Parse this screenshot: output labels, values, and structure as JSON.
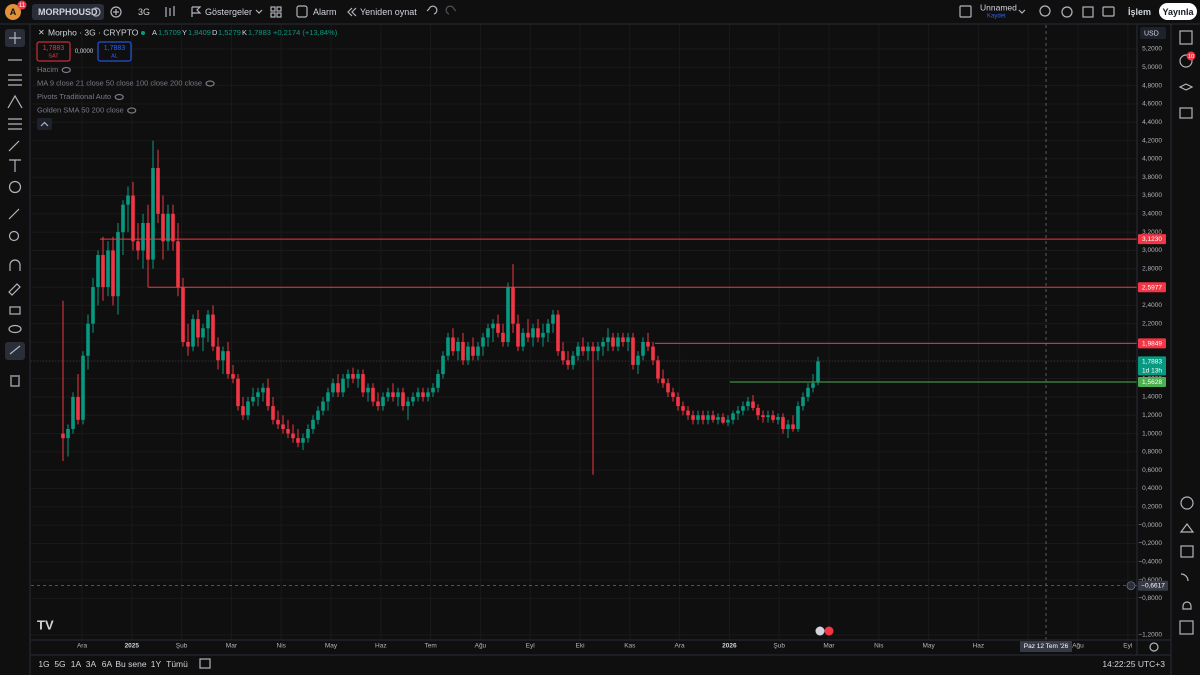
{
  "top_bar": {
    "notification_count": "11",
    "symbol": "MORPHOUSD",
    "interval": "3G",
    "indicators_button": "Göstergeler",
    "alarm_button": "Alarm",
    "replay_button": "Yeniden oynat",
    "layout_name": "Unnamed",
    "save_status": "Kaydet",
    "trade_button": "İşlem",
    "publish_button": "Yayınla"
  },
  "legend": {
    "title": "Morpho · 3G · CRYPTO",
    "open_label": "A",
    "open": "1,5709",
    "high_label": "Y",
    "high": "1,8409",
    "low_label": "D",
    "low": "1,5279",
    "close_label": "K",
    "close": "1,7883",
    "change": "+0,2174 (+13,84%)",
    "sell_price": "1,7883",
    "sell_label": "SAT",
    "spread": "0,0000",
    "buy_price": "1,7883",
    "buy_label": "AL"
  },
  "indicators": [
    "Hacim",
    "MA 9 close 21 close 50 close 100 close 200 close",
    "Pivots Traditional Auto",
    "Golden SMA 50 200 close"
  ],
  "currency": "USD",
  "right_badge": "10",
  "price_chart": {
    "type": "candlestick",
    "up_color": "#089981",
    "down_color": "#f23645",
    "ylim": [
      -1.2,
      5.2
    ],
    "grid": true,
    "yticks": [
      {
        "value": 5.2,
        "label": "5,2000"
      },
      {
        "value": 5.0,
        "label": "5,0000"
      },
      {
        "value": 4.8,
        "label": "4,8000"
      },
      {
        "value": 4.6,
        "label": "4,6000"
      },
      {
        "value": 4.4,
        "label": "4,4000"
      },
      {
        "value": 4.2,
        "label": "4,2000"
      },
      {
        "value": 4.0,
        "label": "4,0000"
      },
      {
        "value": 3.8,
        "label": "3,8000"
      },
      {
        "value": 3.6,
        "label": "3,6000"
      },
      {
        "value": 3.4,
        "label": "3,4000"
      },
      {
        "value": 3.2,
        "label": "3,2000"
      },
      {
        "value": 3.0,
        "label": "3,0000"
      },
      {
        "value": 2.8,
        "label": "2,8000"
      },
      {
        "value": 2.6,
        "label": "2,6000"
      },
      {
        "value": 2.4,
        "label": "2,4000"
      },
      {
        "value": 2.2,
        "label": "2,2000"
      },
      {
        "value": 2.0,
        "label": "2,0000"
      },
      {
        "value": 1.8,
        "label": "1,8000"
      },
      {
        "value": 1.6,
        "label": "1,6000"
      },
      {
        "value": 1.4,
        "label": "1,4000"
      },
      {
        "value": 1.2,
        "label": "1,2000"
      },
      {
        "value": 1.0,
        "label": "1,0000"
      },
      {
        "value": 0.8,
        "label": "0,8000"
      },
      {
        "value": 0.6,
        "label": "0,6000"
      },
      {
        "value": 0.4,
        "label": "0,4000"
      },
      {
        "value": 0.2,
        "label": "0,2000"
      },
      {
        "value": 0,
        "label": "−0,0000"
      },
      {
        "value": -0.2,
        "label": "−0,2000"
      },
      {
        "value": -0.4,
        "label": "−0,4000"
      },
      {
        "value": -0.6,
        "label": "−0,6000"
      },
      {
        "value": -0.8,
        "label": "−0,8000"
      },
      {
        "value": -1.2,
        "label": "−1,2000"
      }
    ],
    "time_labels": [
      "Ara",
      "2025",
      "Şub",
      "Mar",
      "Nis",
      "May",
      "Haz",
      "Tem",
      "Ağu",
      "Eyl",
      "Eki",
      "Kas",
      "Ara",
      "2026",
      "Şub",
      "Mar",
      "Nis",
      "May",
      "Haz",
      null,
      "Ağu",
      "Eyl"
    ],
    "year_labels": [
      "2025",
      "2026"
    ],
    "candles": [
      [
        1.0,
        2.45,
        0.7,
        0.95
      ],
      [
        0.95,
        1.1,
        0.75,
        1.05
      ],
      [
        1.05,
        1.45,
        1.0,
        1.4
      ],
      [
        1.4,
        1.65,
        1.1,
        1.15
      ],
      [
        1.15,
        1.9,
        1.1,
        1.85
      ],
      [
        1.85,
        2.3,
        1.7,
        2.2
      ],
      [
        2.2,
        2.7,
        2.1,
        2.6
      ],
      [
        2.6,
        3.0,
        2.4,
        2.95
      ],
      [
        2.95,
        3.15,
        2.45,
        2.6
      ],
      [
        2.6,
        3.1,
        2.5,
        3.0
      ],
      [
        3.0,
        3.15,
        2.4,
        2.5
      ],
      [
        2.5,
        3.3,
        2.3,
        3.2
      ],
      [
        3.2,
        3.55,
        2.95,
        3.5
      ],
      [
        3.5,
        3.7,
        3.2,
        3.6
      ],
      [
        3.6,
        3.75,
        3.0,
        3.1
      ],
      [
        3.1,
        3.3,
        2.9,
        3.0
      ],
      [
        3.0,
        3.4,
        2.8,
        3.3
      ],
      [
        3.3,
        3.5,
        2.6,
        2.9
      ],
      [
        2.9,
        4.2,
        2.8,
        3.9
      ],
      [
        3.9,
        4.1,
        3.3,
        3.4
      ],
      [
        3.4,
        3.6,
        2.9,
        3.1
      ],
      [
        3.1,
        3.5,
        3.0,
        3.4
      ],
      [
        3.4,
        3.5,
        3.0,
        3.1
      ],
      [
        3.1,
        3.3,
        2.5,
        2.6
      ],
      [
        2.6,
        2.7,
        1.95,
        2.0
      ],
      [
        2.0,
        2.2,
        1.85,
        1.95
      ],
      [
        1.95,
        2.3,
        1.9,
        2.25
      ],
      [
        2.25,
        2.35,
        1.95,
        2.05
      ],
      [
        2.05,
        2.2,
        1.9,
        2.15
      ],
      [
        2.15,
        2.35,
        2.0,
        2.3
      ],
      [
        2.3,
        2.4,
        1.9,
        1.95
      ],
      [
        1.95,
        2.05,
        1.7,
        1.8
      ],
      [
        1.8,
        1.95,
        1.65,
        1.9
      ],
      [
        1.9,
        2.0,
        1.6,
        1.65
      ],
      [
        1.65,
        1.75,
        1.55,
        1.6
      ],
      [
        1.6,
        1.65,
        1.25,
        1.3
      ],
      [
        1.3,
        1.4,
        1.15,
        1.2
      ],
      [
        1.2,
        1.4,
        1.15,
        1.35
      ],
      [
        1.35,
        1.5,
        1.3,
        1.4
      ],
      [
        1.4,
        1.5,
        1.3,
        1.45
      ],
      [
        1.45,
        1.55,
        1.35,
        1.5
      ],
      [
        1.5,
        1.6,
        1.25,
        1.3
      ],
      [
        1.3,
        1.4,
        1.1,
        1.15
      ],
      [
        1.15,
        1.25,
        1.05,
        1.1
      ],
      [
        1.1,
        1.2,
        1.0,
        1.05
      ],
      [
        1.05,
        1.15,
        0.95,
        1.0
      ],
      [
        1.0,
        1.1,
        0.9,
        0.95
      ],
      [
        0.95,
        1.05,
        0.85,
        0.9
      ],
      [
        0.9,
        1.0,
        0.82,
        0.95
      ],
      [
        0.95,
        1.1,
        0.9,
        1.05
      ],
      [
        1.05,
        1.2,
        1.0,
        1.15
      ],
      [
        1.15,
        1.3,
        1.1,
        1.25
      ],
      [
        1.25,
        1.4,
        1.2,
        1.35
      ],
      [
        1.35,
        1.5,
        1.25,
        1.45
      ],
      [
        1.45,
        1.6,
        1.4,
        1.55
      ],
      [
        1.55,
        1.65,
        1.4,
        1.45
      ],
      [
        1.45,
        1.65,
        1.4,
        1.6
      ],
      [
        1.6,
        1.7,
        1.5,
        1.65
      ],
      [
        1.65,
        1.72,
        1.55,
        1.6
      ],
      [
        1.6,
        1.7,
        1.5,
        1.65
      ],
      [
        1.65,
        1.7,
        1.4,
        1.45
      ],
      [
        1.45,
        1.55,
        1.35,
        1.5
      ],
      [
        1.5,
        1.55,
        1.3,
        1.35
      ],
      [
        1.35,
        1.45,
        1.25,
        1.3
      ],
      [
        1.3,
        1.45,
        1.25,
        1.4
      ],
      [
        1.4,
        1.5,
        1.35,
        1.45
      ],
      [
        1.45,
        1.55,
        1.35,
        1.4
      ],
      [
        1.4,
        1.5,
        1.3,
        1.45
      ],
      [
        1.45,
        1.5,
        1.25,
        1.3
      ],
      [
        1.3,
        1.4,
        1.15,
        1.35
      ],
      [
        1.35,
        1.45,
        1.3,
        1.4
      ],
      [
        1.4,
        1.5,
        1.35,
        1.45
      ],
      [
        1.45,
        1.5,
        1.35,
        1.4
      ],
      [
        1.4,
        1.5,
        1.35,
        1.45
      ],
      [
        1.45,
        1.55,
        1.4,
        1.5
      ],
      [
        1.5,
        1.7,
        1.45,
        1.65
      ],
      [
        1.65,
        1.9,
        1.6,
        1.85
      ],
      [
        1.85,
        2.1,
        1.8,
        2.05
      ],
      [
        2.05,
        2.15,
        1.85,
        1.9
      ],
      [
        1.9,
        2.05,
        1.8,
        2.0
      ],
      [
        2.0,
        2.1,
        1.75,
        1.8
      ],
      [
        1.8,
        2.0,
        1.75,
        1.95
      ],
      [
        1.95,
        2.05,
        1.8,
        1.85
      ],
      [
        1.85,
        2.0,
        1.8,
        1.95
      ],
      [
        1.95,
        2.1,
        1.85,
        2.05
      ],
      [
        2.05,
        2.2,
        1.95,
        2.15
      ],
      [
        2.15,
        2.25,
        2.0,
        2.2
      ],
      [
        2.2,
        2.3,
        2.05,
        2.1
      ],
      [
        2.1,
        2.2,
        1.95,
        2.0
      ],
      [
        2.0,
        2.65,
        1.95,
        2.6
      ],
      [
        2.6,
        2.85,
        2.1,
        2.2
      ],
      [
        2.2,
        2.3,
        1.9,
        1.95
      ],
      [
        1.95,
        2.15,
        1.9,
        2.1
      ],
      [
        2.1,
        2.25,
        2.0,
        2.05
      ],
      [
        2.05,
        2.2,
        1.95,
        2.15
      ],
      [
        2.15,
        2.25,
        2.0,
        2.05
      ],
      [
        2.05,
        2.2,
        1.95,
        2.1
      ],
      [
        2.1,
        2.25,
        2.0,
        2.2
      ],
      [
        2.2,
        2.35,
        2.1,
        2.3
      ],
      [
        2.3,
        2.35,
        1.85,
        1.9
      ],
      [
        1.9,
        2.0,
        1.75,
        1.8
      ],
      [
        1.8,
        1.9,
        1.7,
        1.75
      ],
      [
        1.75,
        1.9,
        1.7,
        1.85
      ],
      [
        1.85,
        2.0,
        1.8,
        1.95
      ],
      [
        1.95,
        2.05,
        1.85,
        1.9
      ],
      [
        1.9,
        2.0,
        1.8,
        1.95
      ],
      [
        1.95,
        2.0,
        0.55,
        1.9
      ],
      [
        1.9,
        2.0,
        1.8,
        1.95
      ],
      [
        1.95,
        2.05,
        1.85,
        2.0
      ],
      [
        2.0,
        2.15,
        1.9,
        2.05
      ],
      [
        2.05,
        2.1,
        1.9,
        1.95
      ],
      [
        1.95,
        2.1,
        1.9,
        2.05
      ],
      [
        2.05,
        2.1,
        1.95,
        2.0
      ],
      [
        2.0,
        2.1,
        1.9,
        2.05
      ],
      [
        2.05,
        2.1,
        1.7,
        1.75
      ],
      [
        1.75,
        1.9,
        1.65,
        1.85
      ],
      [
        1.85,
        2.05,
        1.8,
        2.0
      ],
      [
        2.0,
        2.1,
        1.9,
        1.95
      ],
      [
        1.95,
        2.0,
        1.75,
        1.8
      ],
      [
        1.8,
        1.85,
        1.55,
        1.6
      ],
      [
        1.6,
        1.7,
        1.5,
        1.55
      ],
      [
        1.55,
        1.6,
        1.4,
        1.45
      ],
      [
        1.45,
        1.5,
        1.35,
        1.4
      ],
      [
        1.4,
        1.45,
        1.25,
        1.3
      ],
      [
        1.3,
        1.35,
        1.2,
        1.25
      ],
      [
        1.25,
        1.3,
        1.15,
        1.2
      ],
      [
        1.2,
        1.25,
        1.1,
        1.15
      ],
      [
        1.15,
        1.25,
        1.1,
        1.2
      ],
      [
        1.2,
        1.25,
        1.1,
        1.15
      ],
      [
        1.15,
        1.25,
        1.1,
        1.2
      ],
      [
        1.2,
        1.25,
        1.12,
        1.15
      ],
      [
        1.15,
        1.22,
        1.1,
        1.18
      ],
      [
        1.18,
        1.22,
        1.1,
        1.12
      ],
      [
        1.12,
        1.2,
        1.08,
        1.15
      ],
      [
        1.15,
        1.25,
        1.1,
        1.22
      ],
      [
        1.22,
        1.3,
        1.15,
        1.25
      ],
      [
        1.25,
        1.35,
        1.2,
        1.3
      ],
      [
        1.3,
        1.4,
        1.25,
        1.35
      ],
      [
        1.35,
        1.42,
        1.25,
        1.28
      ],
      [
        1.28,
        1.32,
        1.15,
        1.2
      ],
      [
        1.2,
        1.25,
        1.12,
        1.18
      ],
      [
        1.18,
        1.25,
        1.12,
        1.2
      ],
      [
        1.2,
        1.25,
        1.12,
        1.15
      ],
      [
        1.15,
        1.22,
        1.1,
        1.18
      ],
      [
        1.18,
        1.22,
        1.0,
        1.05
      ],
      [
        1.05,
        1.15,
        0.95,
        1.1
      ],
      [
        1.1,
        1.2,
        1.02,
        1.05
      ],
      [
        1.05,
        1.35,
        1.02,
        1.3
      ],
      [
        1.3,
        1.45,
        1.25,
        1.4
      ],
      [
        1.4,
        1.55,
        1.35,
        1.5
      ],
      [
        1.5,
        1.65,
        1.45,
        1.55
      ],
      [
        1.5709,
        1.8409,
        1.5279,
        1.7883
      ]
    ],
    "levels": [
      {
        "value": 3.123,
        "label": "3,1230",
        "color": "#f23645"
      },
      {
        "value": 2.5977,
        "label": "2,5977",
        "color": "#f23645"
      },
      {
        "value": 1.9849,
        "label": "1,9849",
        "color": "#f23645"
      },
      {
        "value": 1.5628,
        "label": "1,5628",
        "color": "#4caf50"
      }
    ],
    "last_price": {
      "value": 1.7883,
      "label": "1,7883",
      "countdown": "1d 13h",
      "color": "#089981"
    },
    "crosshair": {
      "value": -0.6617,
      "label": "−0,6617",
      "time_label": "Paz 12 Tem '26"
    }
  },
  "bottom_bar": {
    "ranges": [
      "1G",
      "5G",
      "1A",
      "3A",
      "6A",
      "Bu sene",
      "1Y",
      "Tümü"
    ],
    "clock": "14:22:25 UTC+3"
  }
}
